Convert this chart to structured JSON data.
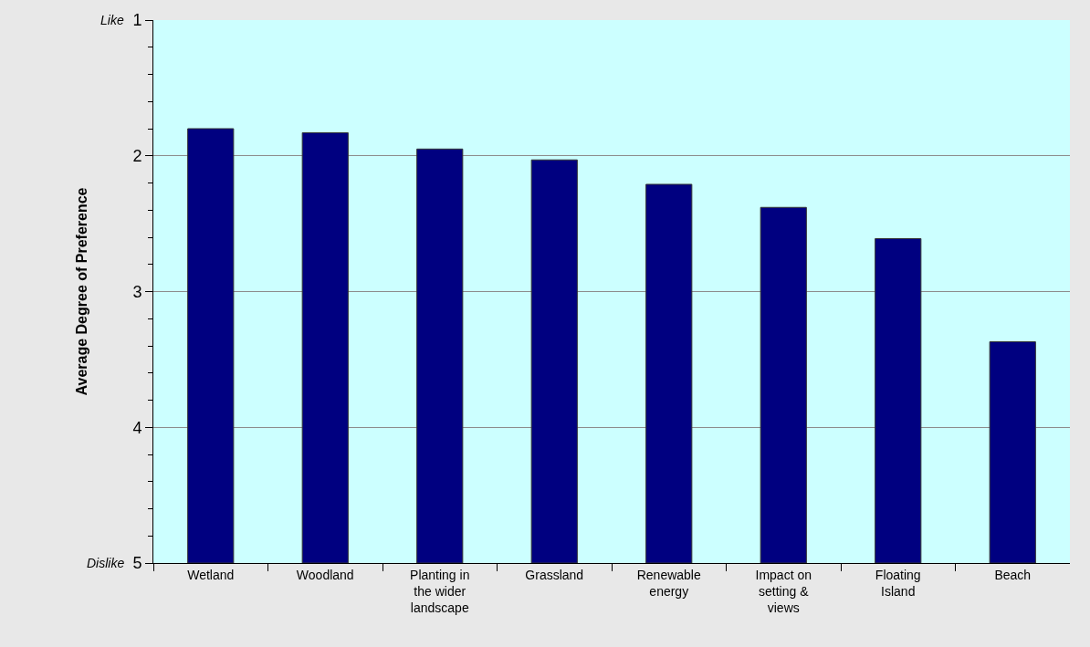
{
  "chart_data": {
    "type": "bar",
    "ylabel": "Average Degree of Preference",
    "categories": [
      "Wetland",
      "Woodland",
      "Planting in the wider landscape",
      "Grassland",
      "Renewable energy",
      "Impact on setting & views",
      "Floating Island",
      "Beach"
    ],
    "base": [
      5,
      5,
      5,
      5,
      5,
      5,
      5,
      5
    ],
    "values": [
      -3.2,
      -3.17,
      -3.05,
      -2.97,
      -2.79,
      -2.62,
      -2.39,
      -1.63
    ],
    "color": "#000080",
    "ylim": [
      5,
      1
    ],
    "yticks": [
      1,
      {
        "value": 1.2,
        "label": null
      },
      {
        "value": 1.4,
        "label": null
      },
      {
        "value": 1.6,
        "label": null
      },
      {
        "value": 1.8,
        "label": null
      },
      2,
      {
        "value": 2.2,
        "label": null
      },
      {
        "value": 2.4,
        "label": null
      },
      {
        "value": 2.6,
        "label": null
      },
      {
        "value": 2.8,
        "label": null
      },
      3,
      {
        "value": 3.2,
        "label": null
      },
      {
        "value": 3.4,
        "label": null
      },
      {
        "value": 3.6,
        "label": null
      },
      {
        "value": 3.8,
        "label": null
      },
      4,
      {
        "value": 4.2,
        "label": null
      },
      {
        "value": 4.4,
        "label": null
      },
      {
        "value": 4.6,
        "label": null
      },
      {
        "value": 4.8,
        "label": null
      },
      5
    ],
    "annotations": [
      "Like",
      "Dislike"
    ],
    "grid": "y",
    "legend": false
  }
}
